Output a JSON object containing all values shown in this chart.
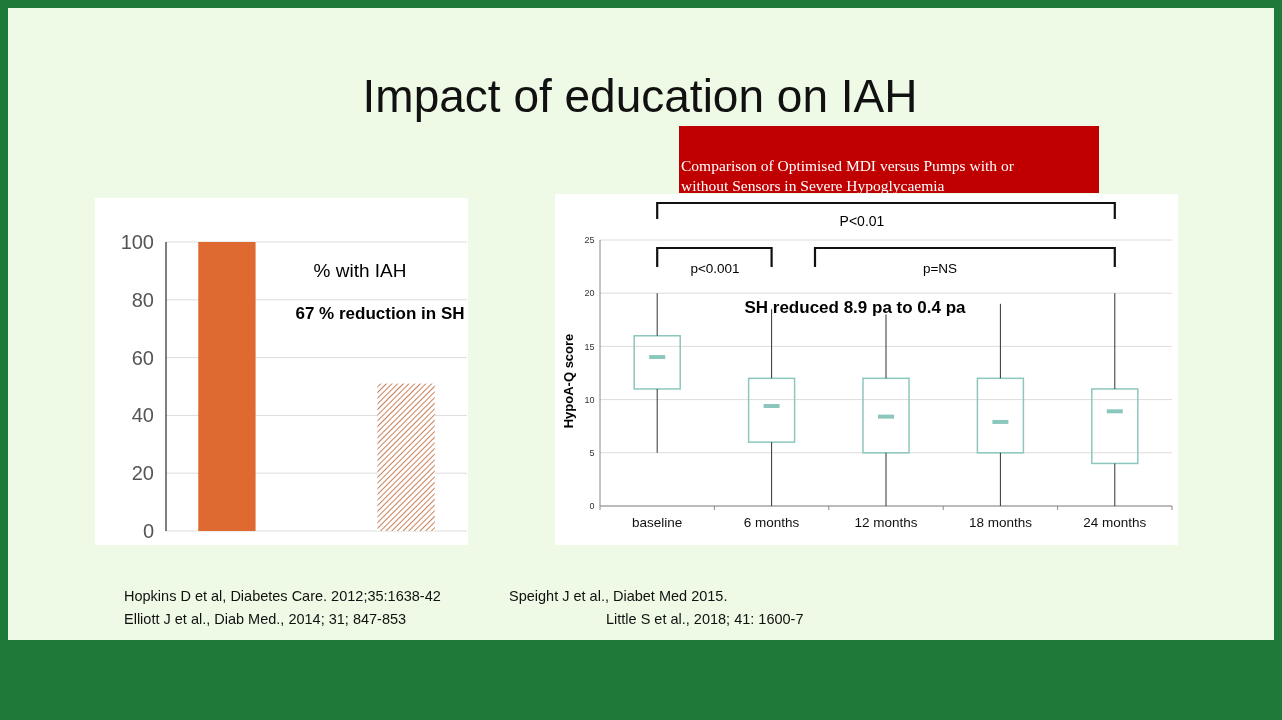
{
  "chart_data": [
    {
      "type": "bar",
      "title": "Impact of education on IAH",
      "categories": [
        null,
        null
      ],
      "values": [
        100,
        51
      ],
      "colors": [
        "#de6a32",
        "#c9825a"
      ],
      "ylim": [
        0,
        100
      ],
      "yticks": [
        0,
        20,
        40,
        60,
        80,
        100
      ],
      "grid": "y",
      "annotations": [
        "% with IAH",
        "67 % reduction in SH",
        "Hopkins D et al,  Diabetes Care. 2012;35:1638-42",
        "Elliott J et al., Diab Med., 2014; 31; 847-853"
      ]
    },
    {
      "type": "box",
      "subtitle": "Comparison of Optimised MDI versus Pumps with or without Sensors in Severe Hypoglycaemia",
      "ylabel": "HypoA-Q score",
      "categories": [
        "baseline",
        "6 months",
        "12 months",
        "18 months",
        "24 months"
      ],
      "series": [
        {
          "color": "#8cc7bd",
          "boxes": [
            {
              "low": 5,
              "q1": 11,
              "median": 14,
              "q3": 16,
              "high": 20
            },
            {
              "low": 0,
              "q1": 6,
              "median": 9.4,
              "q3": 12,
              "high": 18.5
            },
            {
              "low": 0,
              "q1": 5,
              "median": 8.4,
              "q3": 12,
              "high": 18
            },
            {
              "low": 0,
              "q1": 5,
              "median": 7.9,
              "q3": 12,
              "high": 19
            },
            {
              "low": 0,
              "q1": 4,
              "median": 8.9,
              "q3": 11,
              "high": 20
            }
          ]
        }
      ],
      "ylim": [
        0,
        25
      ],
      "yticks": [
        0,
        5,
        10,
        15,
        20,
        25
      ],
      "grid": "y",
      "annotations": [
        "P<0.01",
        "p<0.001",
        "p=NS",
        "SH reduced 8.9 pa to 0.4 pa",
        "Speight J et al., Diabet Med 2015.",
        "Little S et al., 2018; 41: 1600-7"
      ]
    }
  ]
}
